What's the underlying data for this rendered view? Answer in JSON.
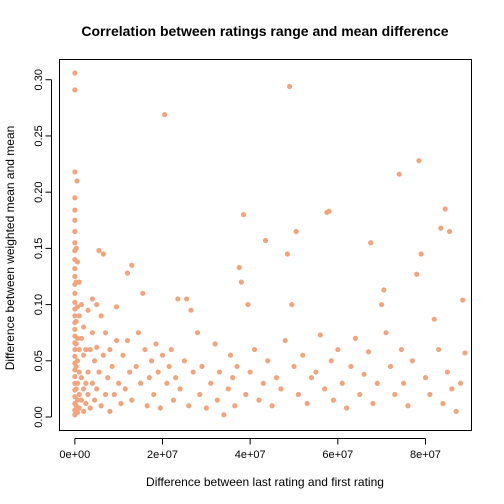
{
  "chart_data": {
    "type": "scatter",
    "title": "Correlation between ratings range and mean difference",
    "xlabel": "Difference between last rating and first rating",
    "ylabel": "Difference between weighted mean and mean",
    "xlim": [
      -3500000,
      90500000
    ],
    "ylim": [
      -0.012,
      0.318
    ],
    "xticks": [
      0,
      20000000,
      40000000,
      60000000,
      80000000
    ],
    "xtick_labels": [
      "0e+00",
      "2e+07",
      "4e+07",
      "6e+07",
      "8e+07"
    ],
    "yticks": [
      0.0,
      0.05,
      0.1,
      0.15,
      0.2,
      0.25,
      0.3
    ],
    "ytick_labels": [
      "0.00",
      "0.05",
      "0.10",
      "0.15",
      "0.20",
      "0.25",
      "0.30"
    ],
    "grid": false,
    "legend": "none",
    "point_color": "#f4a47c",
    "points": [
      [
        0,
        0.306
      ],
      [
        0,
        0.291
      ],
      [
        0,
        0.218
      ],
      [
        500000,
        0.21
      ],
      [
        0,
        0.195
      ],
      [
        0,
        0.184
      ],
      [
        0,
        0.175
      ],
      [
        0,
        0.165
      ],
      [
        0,
        0.155
      ],
      [
        0,
        0.148
      ],
      [
        0,
        0.14
      ],
      [
        0,
        0.132
      ],
      [
        0,
        0.125
      ],
      [
        0,
        0.118
      ],
      [
        0,
        0.11
      ],
      [
        0,
        0.102
      ],
      [
        0,
        0.096
      ],
      [
        0,
        0.09
      ],
      [
        0,
        0.084
      ],
      [
        0,
        0.078
      ],
      [
        0,
        0.072
      ],
      [
        0,
        0.066
      ],
      [
        0,
        0.06
      ],
      [
        0,
        0.054
      ],
      [
        0,
        0.048
      ],
      [
        0,
        0.042
      ],
      [
        0,
        0.036
      ],
      [
        0,
        0.03
      ],
      [
        0,
        0.024
      ],
      [
        0,
        0.018
      ],
      [
        0,
        0.012
      ],
      [
        0,
        0.006
      ],
      [
        0,
        0.002
      ],
      [
        300000,
        0.15
      ],
      [
        300000,
        0.12
      ],
      [
        300000,
        0.085
      ],
      [
        300000,
        0.065
      ],
      [
        300000,
        0.045
      ],
      [
        300000,
        0.025
      ],
      [
        300000,
        0.01
      ],
      [
        600000,
        0.138
      ],
      [
        600000,
        0.098
      ],
      [
        600000,
        0.07
      ],
      [
        600000,
        0.05
      ],
      [
        600000,
        0.03
      ],
      [
        600000,
        0.015
      ],
      [
        600000,
        0.004
      ],
      [
        1000000,
        0.12
      ],
      [
        1000000,
        0.09
      ],
      [
        1000000,
        0.06
      ],
      [
        1000000,
        0.04
      ],
      [
        1000000,
        0.02
      ],
      [
        1000000,
        0.008
      ],
      [
        1500000,
        0.1
      ],
      [
        1500000,
        0.07
      ],
      [
        1500000,
        0.035
      ],
      [
        1500000,
        0.015
      ],
      [
        2000000,
        0.08
      ],
      [
        2000000,
        0.055
      ],
      [
        2000000,
        0.025
      ],
      [
        2000000,
        0.005
      ],
      [
        2500000,
        0.06
      ],
      [
        2500000,
        0.03
      ],
      [
        2500000,
        0.012
      ],
      [
        3000000,
        0.095
      ],
      [
        3000000,
        0.04
      ],
      [
        3000000,
        0.02
      ],
      [
        3500000,
        0.06
      ],
      [
        3500000,
        0.008
      ],
      [
        4000000,
        0.105
      ],
      [
        4000000,
        0.075
      ],
      [
        4000000,
        0.03
      ],
      [
        4500000,
        0.05
      ],
      [
        4500000,
        0.015
      ],
      [
        5000000,
        0.1
      ],
      [
        5000000,
        0.062
      ],
      [
        5000000,
        0.025
      ],
      [
        5500000,
        0.148
      ],
      [
        5500000,
        0.04
      ],
      [
        6000000,
        0.09
      ],
      [
        6000000,
        0.01
      ],
      [
        6500000,
        0.145
      ],
      [
        6500000,
        0.055
      ],
      [
        7000000,
        0.075
      ],
      [
        7000000,
        0.02
      ],
      [
        7500000,
        0.035
      ],
      [
        8000000,
        0.06
      ],
      [
        8000000,
        0.005
      ],
      [
        8500000,
        0.045
      ],
      [
        9000000,
        0.02
      ],
      [
        9500000,
        0.098
      ],
      [
        9500000,
        0.068
      ],
      [
        10000000,
        0.03
      ],
      [
        10500000,
        0.012
      ],
      [
        11000000,
        0.055
      ],
      [
        11500000,
        0.025
      ],
      [
        12000000,
        0.128
      ],
      [
        12000000,
        0.068
      ],
      [
        12500000,
        0.04
      ],
      [
        13000000,
        0.135
      ],
      [
        13000000,
        0.015
      ],
      [
        14000000,
        0.045
      ],
      [
        14500000,
        0.075
      ],
      [
        15000000,
        0.03
      ],
      [
        15500000,
        0.11
      ],
      [
        16000000,
        0.06
      ],
      [
        16500000,
        0.01
      ],
      [
        17000000,
        0.035
      ],
      [
        17500000,
        0.05
      ],
      [
        18000000,
        0.02
      ],
      [
        18500000,
        0.065
      ],
      [
        19000000,
        0.04
      ],
      [
        19500000,
        0.008
      ],
      [
        20000000,
        0.055
      ],
      [
        20500000,
        0.269
      ],
      [
        21000000,
        0.03
      ],
      [
        21500000,
        0.045
      ],
      [
        22000000,
        0.06
      ],
      [
        22500000,
        0.015
      ],
      [
        23000000,
        0.035
      ],
      [
        23500000,
        0.105
      ],
      [
        24000000,
        0.025
      ],
      [
        25000000,
        0.05
      ],
      [
        25500000,
        0.105
      ],
      [
        26000000,
        0.01
      ],
      [
        26500000,
        0.095
      ],
      [
        27000000,
        0.04
      ],
      [
        28000000,
        0.075
      ],
      [
        28500000,
        0.02
      ],
      [
        29000000,
        0.045
      ],
      [
        30000000,
        0.008
      ],
      [
        31000000,
        0.03
      ],
      [
        32000000,
        0.065
      ],
      [
        32500000,
        0.015
      ],
      [
        33000000,
        0.04
      ],
      [
        34000000,
        0.002
      ],
      [
        35000000,
        0.025
      ],
      [
        35500000,
        0.055
      ],
      [
        36000000,
        0.035
      ],
      [
        36500000,
        0.01
      ],
      [
        37000000,
        0.045
      ],
      [
        37500000,
        0.133
      ],
      [
        38000000,
        0.12
      ],
      [
        38500000,
        0.18
      ],
      [
        39000000,
        0.02
      ],
      [
        39500000,
        0.1
      ],
      [
        40000000,
        0.04
      ],
      [
        41000000,
        0.06
      ],
      [
        42000000,
        0.015
      ],
      [
        43000000,
        0.03
      ],
      [
        43500000,
        0.157
      ],
      [
        44000000,
        0.05
      ],
      [
        45000000,
        0.01
      ],
      [
        46000000,
        0.035
      ],
      [
        47000000,
        0.025
      ],
      [
        48000000,
        0.068
      ],
      [
        48500000,
        0.145
      ],
      [
        49000000,
        0.294
      ],
      [
        49500000,
        0.1
      ],
      [
        50000000,
        0.045
      ],
      [
        50500000,
        0.165
      ],
      [
        51000000,
        0.02
      ],
      [
        52000000,
        0.055
      ],
      [
        53000000,
        0.012
      ],
      [
        54000000,
        0.035
      ],
      [
        55000000,
        0.04
      ],
      [
        56000000,
        0.073
      ],
      [
        57000000,
        0.025
      ],
      [
        57500000,
        0.182
      ],
      [
        58000000,
        0.183
      ],
      [
        58500000,
        0.05
      ],
      [
        59000000,
        0.015
      ],
      [
        60000000,
        0.06
      ],
      [
        61000000,
        0.03
      ],
      [
        62000000,
        0.008
      ],
      [
        63000000,
        0.045
      ],
      [
        64000000,
        0.07
      ],
      [
        65000000,
        0.02
      ],
      [
        66000000,
        0.038
      ],
      [
        67000000,
        0.058
      ],
      [
        67500000,
        0.155
      ],
      [
        68000000,
        0.012
      ],
      [
        69000000,
        0.03
      ],
      [
        70000000,
        0.1
      ],
      [
        70500000,
        0.113
      ],
      [
        71000000,
        0.075
      ],
      [
        72000000,
        0.045
      ],
      [
        73000000,
        0.02
      ],
      [
        74000000,
        0.216
      ],
      [
        74500000,
        0.06
      ],
      [
        75000000,
        0.03
      ],
      [
        76000000,
        0.01
      ],
      [
        77000000,
        0.05
      ],
      [
        78000000,
        0.127
      ],
      [
        78500000,
        0.228
      ],
      [
        79000000,
        0.145
      ],
      [
        80000000,
        0.035
      ],
      [
        81000000,
        0.02
      ],
      [
        82000000,
        0.087
      ],
      [
        83000000,
        0.06
      ],
      [
        83500000,
        0.168
      ],
      [
        84000000,
        0.012
      ],
      [
        84500000,
        0.185
      ],
      [
        85000000,
        0.04
      ],
      [
        85500000,
        0.165
      ],
      [
        86000000,
        0.025
      ],
      [
        87000000,
        0.005
      ],
      [
        88000000,
        0.03
      ],
      [
        88500000,
        0.104
      ],
      [
        89000000,
        0.057
      ]
    ]
  }
}
